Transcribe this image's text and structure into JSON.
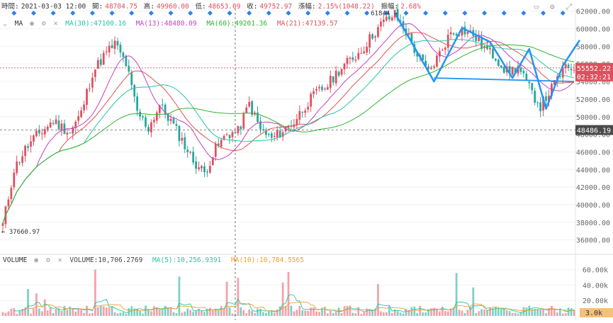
{
  "header": {
    "time_label": "時間:",
    "time": "2021-03-03 12:00",
    "open_label": "開:",
    "open": "48704.75",
    "high_label": "高:",
    "high": "49960.00",
    "low_label": "低:",
    "low": "48653.09",
    "close_label": "收:",
    "close": "49752.97",
    "change_label": "漲幅:",
    "change": "2.15%(1048.22)",
    "amplitude_label": "振幅:",
    "amplitude": "2.68%"
  },
  "indicators": {
    "ma_label": "MA",
    "ma30": "MA(30):47100.16",
    "ma13": "MA(13):48480.09",
    "ma60": "MA(60):49201.36",
    "ma21": "MA(21):47139.57",
    "volume_label": "VOLUME",
    "volume": "VOLUME:10,706.2769",
    "vma5": "MA(5):10,256.9391",
    "vma10": "MA(10):10,784.5565"
  },
  "colors": {
    "up": "#e04f5f",
    "down": "#26a69a",
    "ma30": "#26c6a0",
    "ma13": "#c43fc4",
    "ma60": "#2fb52f",
    "ma21": "#e05252",
    "vma5": "#26c6a0",
    "vma10": "#f0a030",
    "drawing": "#2196f3"
  },
  "markers": {
    "high": "61844",
    "low": "37660.97",
    "current_price": "55552.22",
    "countdown": "02:32:21",
    "crosshair_price": "48486.19",
    "volume_last": "3.0k"
  },
  "chart_data": {
    "type": "candlestick",
    "price_axis": {
      "ticks": [
        36000,
        38000,
        40000,
        42000,
        44000,
        46000,
        48000,
        50000,
        52000,
        54000,
        56000,
        58000,
        60000,
        62000
      ],
      "range": [
        34600,
        62300
      ]
    },
    "volume_axis": {
      "ticks": [
        "20.00k",
        "40.00k",
        "60.00k"
      ],
      "range": [
        0,
        68000
      ]
    },
    "waypoints": [
      [
        0,
        37700
      ],
      [
        4,
        44000
      ],
      [
        8,
        46300
      ],
      [
        12,
        47800
      ],
      [
        18,
        49500
      ],
      [
        24,
        48200
      ],
      [
        28,
        50400
      ],
      [
        32,
        55000
      ],
      [
        36,
        56900
      ],
      [
        40,
        58300
      ],
      [
        44,
        56000
      ],
      [
        48,
        50500
      ],
      [
        52,
        48700
      ],
      [
        56,
        51300
      ],
      [
        60,
        49500
      ],
      [
        64,
        47300
      ],
      [
        68,
        45000
      ],
      [
        72,
        43600
      ],
      [
        76,
        46300
      ],
      [
        80,
        48000
      ],
      [
        84,
        48300
      ],
      [
        88,
        51500
      ],
      [
        92,
        48500
      ],
      [
        96,
        47500
      ],
      [
        100,
        48400
      ],
      [
        104,
        49400
      ],
      [
        108,
        51300
      ],
      [
        112,
        52700
      ],
      [
        116,
        53600
      ],
      [
        120,
        55300
      ],
      [
        124,
        56400
      ],
      [
        128,
        57500
      ],
      [
        132,
        59300
      ],
      [
        136,
        60800
      ],
      [
        140,
        61600
      ],
      [
        144,
        59700
      ],
      [
        148,
        57000
      ],
      [
        152,
        55000
      ],
      [
        156,
        57200
      ],
      [
        160,
        59600
      ],
      [
        164,
        59900
      ],
      [
        168,
        59300
      ],
      [
        172,
        57800
      ],
      [
        176,
        56800
      ],
      [
        180,
        55100
      ],
      [
        184,
        55600
      ],
      [
        188,
        53200
      ],
      [
        192,
        51200
      ],
      [
        196,
        53200
      ],
      [
        200,
        55300
      ],
      [
        203,
        55550
      ]
    ],
    "ma_series": [
      {
        "name": "MA(13)",
        "period": 13
      },
      {
        "name": "MA(21)",
        "period": 21
      },
      {
        "name": "MA(30)",
        "period": 30
      },
      {
        "name": "MA(60)",
        "period": 60
      }
    ],
    "vol_ma_series": [
      {
        "name": "MA(5)",
        "period": 5
      },
      {
        "name": "MA(10)",
        "period": 10
      }
    ],
    "zigzag_pattern": [
      [
        140,
        61800
      ],
      [
        154,
        54000
      ],
      [
        164,
        60100
      ],
      [
        174,
        58500
      ],
      [
        182,
        54400
      ],
      [
        188,
        57700
      ],
      [
        194,
        50900
      ],
      [
        200,
        55800
      ],
      [
        206,
        58700
      ]
    ],
    "neckline": [
      [
        154,
        54400
      ],
      [
        204,
        54000
      ]
    ]
  }
}
